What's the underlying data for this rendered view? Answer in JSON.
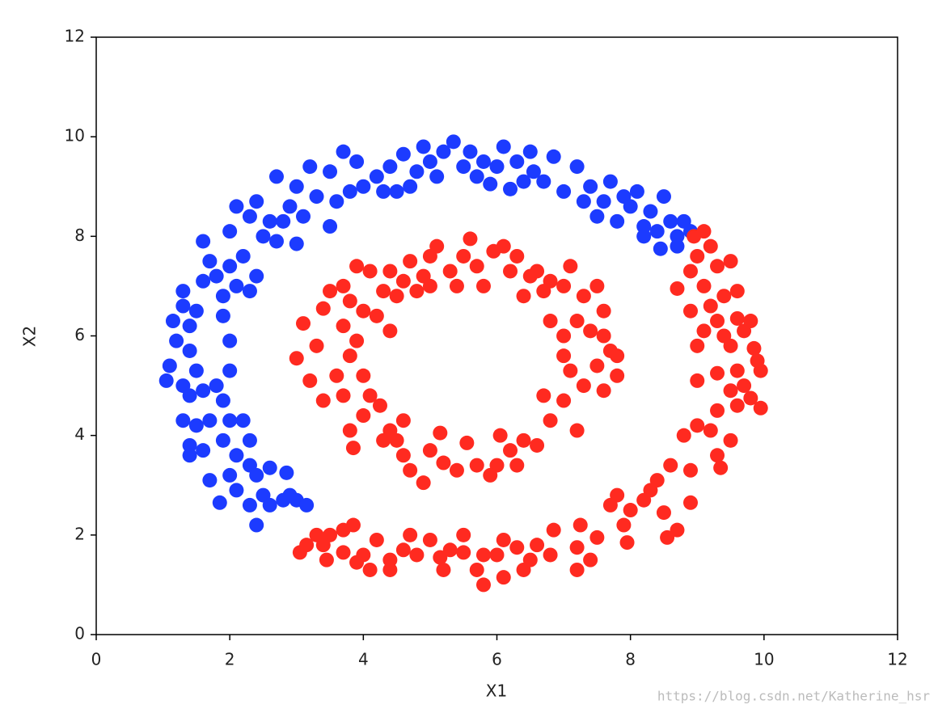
{
  "chart_data": {
    "type": "scatter",
    "x_label": "X1",
    "y_label": "X2",
    "xlim": [
      0,
      12
    ],
    "ylim": [
      0,
      12
    ],
    "xticks": [
      0,
      2,
      4,
      6,
      8,
      10,
      12
    ],
    "yticks": [
      0,
      2,
      4,
      6,
      8,
      10,
      12
    ],
    "grid": false,
    "watermark": "https://blog.csdn.net/Katherine_hsr",
    "series": [
      {
        "color": "#1c3bff",
        "x": [
          1.05,
          1.1,
          1.2,
          1.15,
          1.3,
          1.3,
          1.4,
          1.5,
          1.6,
          1.7,
          1.6,
          1.8,
          1.9,
          2.0,
          2.1,
          2.2,
          2.0,
          2.1,
          2.3,
          2.4,
          2.5,
          2.6,
          2.7,
          2.8,
          2.9,
          2.7,
          3.0,
          3.1,
          3.2,
          3.3,
          3.0,
          2.4,
          2.3,
          1.9,
          1.4,
          1.5,
          1.3,
          1.4,
          1.6,
          1.8,
          1.9,
          2.0,
          1.3,
          1.5,
          1.4,
          1.7,
          1.6,
          1.4,
          1.9,
          2.0,
          2.2,
          2.3,
          2.1,
          2.0,
          1.7,
          2.1,
          2.3,
          2.4,
          2.6,
          1.85,
          2.3,
          2.4,
          2.5,
          2.6,
          2.8,
          2.9,
          3.0,
          3.15,
          2.85,
          2.0,
          3.5,
          3.6,
          3.5,
          3.7,
          3.8,
          3.9,
          4.0,
          4.2,
          4.3,
          4.4,
          4.6,
          4.7,
          4.8,
          4.9,
          5.0,
          5.1,
          5.2,
          5.35,
          5.5,
          5.6,
          5.7,
          5.8,
          5.9,
          6.0,
          6.1,
          6.3,
          6.4,
          6.5,
          6.55,
          6.7,
          6.85,
          7.0,
          7.2,
          7.3,
          7.4,
          7.5,
          7.6,
          7.7,
          7.8,
          7.9,
          8.0,
          8.1,
          8.2,
          8.3,
          8.4,
          8.5,
          8.6,
          8.7,
          8.8,
          8.9,
          8.2,
          8.45,
          8.7,
          6.2,
          4.5
        ],
        "y": [
          5.1,
          5.4,
          5.9,
          6.3,
          6.6,
          6.9,
          6.2,
          6.5,
          7.1,
          7.5,
          7.9,
          7.2,
          6.8,
          7.4,
          7.0,
          7.6,
          8.1,
          8.6,
          8.4,
          8.7,
          8.0,
          8.3,
          7.9,
          8.3,
          8.6,
          9.2,
          9.0,
          8.4,
          9.4,
          8.8,
          7.85,
          7.2,
          6.9,
          6.4,
          5.7,
          5.3,
          5.0,
          4.8,
          4.9,
          5.0,
          4.7,
          5.3,
          4.3,
          4.2,
          3.8,
          4.3,
          3.7,
          3.6,
          3.9,
          4.3,
          4.3,
          3.9,
          3.6,
          3.2,
          3.1,
          2.9,
          3.4,
          3.2,
          3.35,
          2.65,
          2.6,
          2.2,
          2.8,
          2.6,
          2.7,
          2.8,
          2.7,
          2.6,
          3.25,
          5.9,
          9.3,
          8.7,
          8.2,
          9.7,
          8.9,
          9.5,
          9.0,
          9.2,
          8.9,
          9.4,
          9.65,
          9.0,
          9.3,
          9.8,
          9.5,
          9.2,
          9.7,
          9.9,
          9.4,
          9.7,
          9.2,
          9.5,
          9.05,
          9.4,
          9.8,
          9.5,
          9.1,
          9.7,
          9.3,
          9.1,
          9.6,
          8.9,
          9.4,
          8.7,
          9.0,
          8.4,
          8.7,
          9.1,
          8.3,
          8.8,
          8.6,
          8.9,
          8.2,
          8.5,
          8.1,
          8.8,
          8.3,
          8.0,
          8.3,
          8.1,
          8.0,
          7.75,
          7.8,
          8.95,
          8.9
        ]
      },
      {
        "color": "#ff2a20",
        "x": [
          8.95,
          9.1,
          9.2,
          9.0,
          9.3,
          9.5,
          8.9,
          8.7,
          9.1,
          9.4,
          9.6,
          9.2,
          8.9,
          9.3,
          9.6,
          9.8,
          9.1,
          9.4,
          9.7,
          9.0,
          9.5,
          9.85,
          9.9,
          9.6,
          9.3,
          9.0,
          9.95,
          9.7,
          9.5,
          9.8,
          9.6,
          9.95,
          9.3,
          9.0,
          8.8,
          9.2,
          9.5,
          9.3,
          9.35,
          8.9,
          8.6,
          8.4,
          8.3,
          8.9,
          8.5,
          8.7,
          8.2,
          8.0,
          7.9,
          7.7,
          7.8,
          7.95,
          8.55,
          7.5,
          7.25,
          7.2,
          7.4,
          7.2,
          6.8,
          6.85,
          6.6,
          6.5,
          6.3,
          6.1,
          6.0,
          6.1,
          5.8,
          5.8,
          5.7,
          5.5,
          5.5,
          5.3,
          5.2,
          5.0,
          4.8,
          4.7,
          4.6,
          4.4,
          4.4,
          4.2,
          4.1,
          4.0,
          3.85,
          3.7,
          3.7,
          3.5,
          3.4,
          3.3,
          3.15,
          3.05,
          3.45,
          3.9,
          5.15,
          6.4,
          3.0,
          3.1,
          3.2,
          3.3,
          3.4,
          3.5,
          3.4,
          3.6,
          3.7,
          3.8,
          3.7,
          3.9,
          3.8,
          3.9,
          3.7,
          3.8,
          3.85,
          4.0,
          4.1,
          4.0,
          4.2,
          4.3,
          4.1,
          4.4,
          4.5,
          4.6,
          4.7,
          4.8,
          4.9,
          5.0,
          5.0,
          5.1,
          5.3,
          5.4,
          5.5,
          5.6,
          5.7,
          5.8,
          5.95,
          6.1,
          6.2,
          6.3,
          6.5,
          6.4,
          6.6,
          6.7,
          6.8,
          7.0,
          7.1,
          7.3,
          7.5,
          7.6,
          7.2,
          7.4,
          7.6,
          7.7,
          7.5,
          7.8,
          7.3,
          7.6,
          7.8,
          7.1,
          7.0,
          7.2,
          6.8,
          6.6,
          6.4,
          6.7,
          6.3,
          6.2,
          6.0,
          5.9,
          5.7,
          5.55,
          5.4,
          5.2,
          5.0,
          4.9,
          4.7,
          4.6,
          4.5,
          4.4,
          4.3,
          4.6,
          4.25,
          5.15,
          6.05,
          7.0,
          7.0,
          6.8,
          4.4,
          4.0
        ],
        "y": [
          8.0,
          8.1,
          7.8,
          7.6,
          7.4,
          7.5,
          7.3,
          6.95,
          7.0,
          6.8,
          6.9,
          6.6,
          6.5,
          6.3,
          6.35,
          6.3,
          6.1,
          6.0,
          6.1,
          5.8,
          5.8,
          5.75,
          5.5,
          5.3,
          5.25,
          5.1,
          5.3,
          5.0,
          4.9,
          4.75,
          4.6,
          4.55,
          4.5,
          4.2,
          4.0,
          4.1,
          3.9,
          3.6,
          3.35,
          3.3,
          3.4,
          3.1,
          2.9,
          2.65,
          2.45,
          2.1,
          2.7,
          2.5,
          2.2,
          2.6,
          2.8,
          1.85,
          1.95,
          1.95,
          2.2,
          1.75,
          1.5,
          1.3,
          1.6,
          2.1,
          1.8,
          1.5,
          1.75,
          1.9,
          1.6,
          1.15,
          1.0,
          1.6,
          1.3,
          1.65,
          2.0,
          1.7,
          1.3,
          1.9,
          1.6,
          2.0,
          1.7,
          1.5,
          1.3,
          1.9,
          1.3,
          1.6,
          2.2,
          2.1,
          1.65,
          2.0,
          1.8,
          2.0,
          1.8,
          1.65,
          1.5,
          1.45,
          1.55,
          1.3,
          5.55,
          6.25,
          5.1,
          5.8,
          6.55,
          6.9,
          4.7,
          5.2,
          6.2,
          6.7,
          7.0,
          7.4,
          5.6,
          5.9,
          4.8,
          4.1,
          3.75,
          4.4,
          4.8,
          5.2,
          6.4,
          6.9,
          7.3,
          7.3,
          6.8,
          7.1,
          7.5,
          6.9,
          7.2,
          7.6,
          7.0,
          7.8,
          7.3,
          7.0,
          7.6,
          7.95,
          7.4,
          7.0,
          7.7,
          7.8,
          7.3,
          7.6,
          7.2,
          6.8,
          7.3,
          6.9,
          7.1,
          7.0,
          7.4,
          6.8,
          7.0,
          6.5,
          6.3,
          6.1,
          6.0,
          5.7,
          5.4,
          5.6,
          5.0,
          4.9,
          5.2,
          5.3,
          4.7,
          4.1,
          4.3,
          3.8,
          3.9,
          4.8,
          3.4,
          3.7,
          3.4,
          3.2,
          3.4,
          3.85,
          3.3,
          3.45,
          3.7,
          3.05,
          3.3,
          3.6,
          3.9,
          4.1,
          3.9,
          4.3,
          4.6,
          4.05,
          4.0,
          5.6,
          6.0,
          6.3,
          6.1,
          6.5
        ]
      }
    ]
  }
}
